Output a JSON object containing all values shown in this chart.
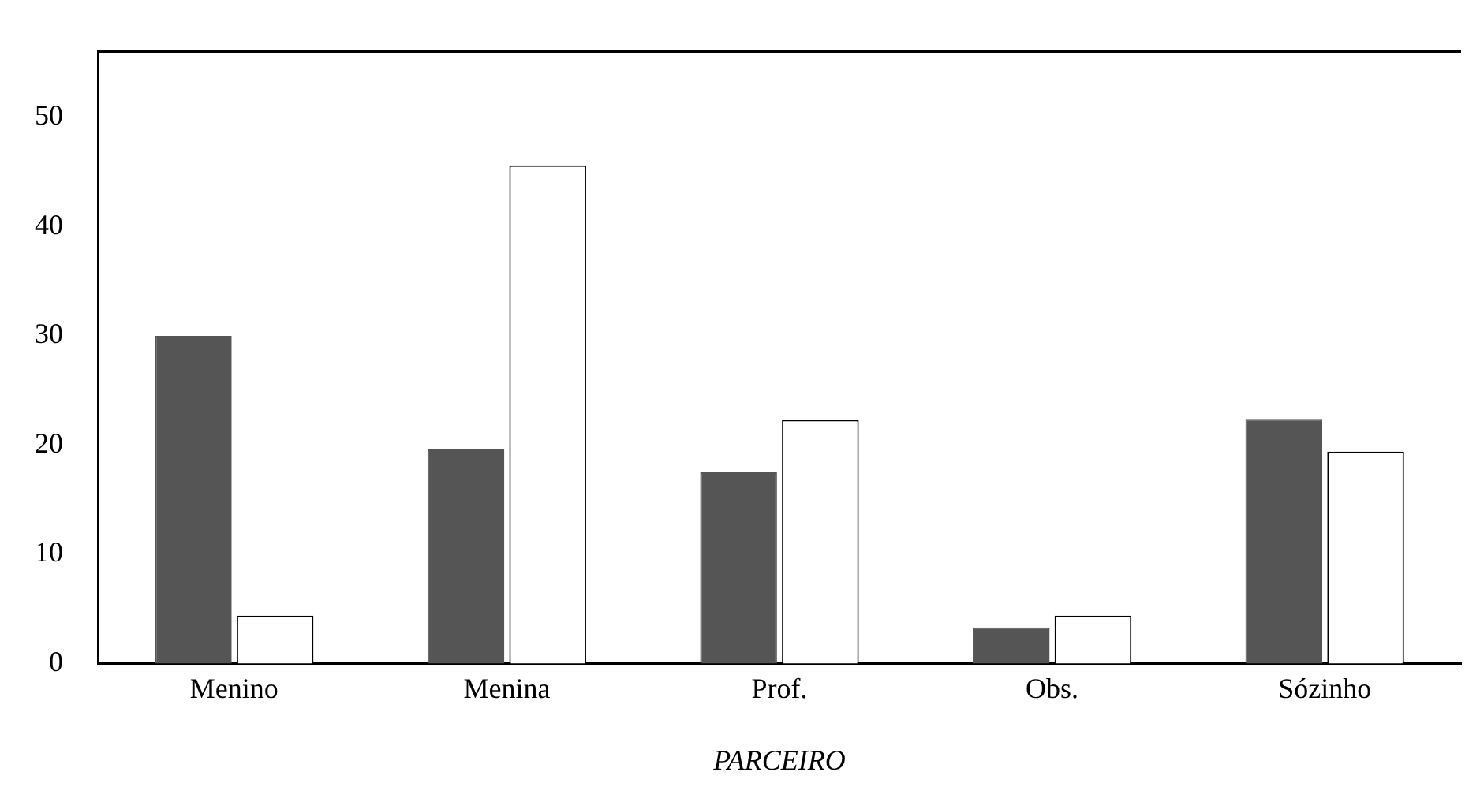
{
  "chart_data": {
    "type": "bar",
    "xlabel": "PARCEIRO",
    "categories": [
      "Menino",
      "Menina",
      "Prof.",
      "Obs.",
      "Sózinho"
    ],
    "series": [
      {
        "color": "#555555",
        "values": [
          30,
          19.6,
          17.5,
          3.3,
          22.4
        ]
      },
      {
        "color": "#ffffff",
        "values": [
          4.4,
          45.6,
          22.3,
          4.4,
          19.4
        ]
      }
    ],
    "ylim": [
      0,
      56
    ],
    "yticks": [
      0,
      10,
      20,
      30,
      40,
      50
    ],
    "grid": false,
    "legend": false
  }
}
